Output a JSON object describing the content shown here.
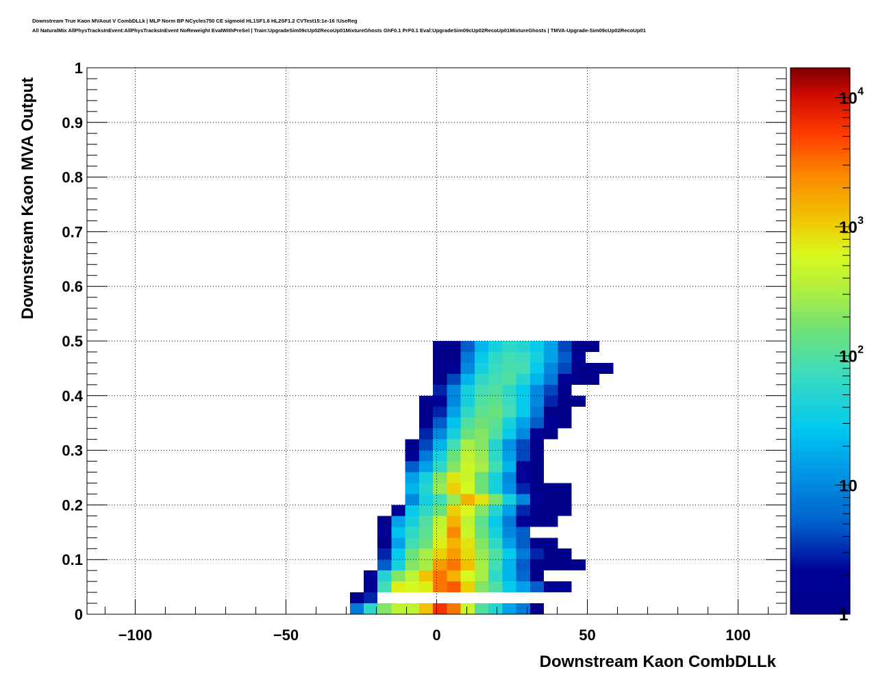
{
  "header": {
    "title_line1": "Downstream True Kaon MVAout V CombDLLk | MLP Norm BP NCycles750 CE sigmoid HL1SF1.6 HL2SF1.2 CVTest15:1e-16 !UseReg",
    "title_line2": "All NaturalMix AllPhysTracksInEvent:AllPhysTracksInEvent NoReweight EvalWithPreSel | Train:UpgradeSim09cUp02RecoUp01MixtureGhosts GhF0.1 PrF0.1 Eval:UpgradeSim09cUp02RecoUp01MixtureGhosts | TMVA-Upgrade-Sim09cUp02RecoUp01"
  },
  "chart_data": {
    "type": "heatmap",
    "title": "Downstream True Kaon MVAout V CombDLLk | MLP Norm BP NCycles750 CE sigmoid HL1SF1.6 HL2SF1.2 CVTest15:1e-16 !UseReg",
    "xlabel": "Downstream Kaon CombDLLk",
    "ylabel": "Downstream Kaon MVA Output",
    "xlim": [
      -116,
      116
    ],
    "ylim": [
      0,
      1
    ],
    "xticks": [
      "−100",
      "−50",
      "0",
      "50",
      "100"
    ],
    "xtick_values": [
      -100,
      -50,
      0,
      50,
      100
    ],
    "yticks": [
      "0",
      "0.1",
      "0.2",
      "0.3",
      "0.4",
      "0.5",
      "0.6",
      "0.7",
      "0.8",
      "0.9",
      "1"
    ],
    "ytick_values": [
      0,
      0.1,
      0.2,
      0.3,
      0.4,
      0.5,
      0.6,
      0.7,
      0.8,
      0.9,
      1
    ],
    "grid": true,
    "colorbar": {
      "scale": "log",
      "range": [
        1,
        17000
      ],
      "tick_values": [
        1,
        10,
        100,
        1000,
        10000
      ],
      "tick_labels": [
        {
          "base": "1",
          "exp": ""
        },
        {
          "base": "10",
          "exp": ""
        },
        {
          "base": "10",
          "exp": "2"
        },
        {
          "base": "10",
          "exp": "3"
        },
        {
          "base": "10",
          "exp": "4"
        }
      ]
    },
    "x_bin_edges_start": -28.8,
    "x_bin_width": 4.6,
    "y_bin_width": 0.02,
    "row_note": "rows indexed from y=0 upward; each row: [y_bin_index, first_x_bin_index, counts...]",
    "rows": [
      [
        0,
        0,
        8,
        60,
        200,
        400,
        400,
        1200,
        6000,
        3000,
        500,
        100,
        50,
        15,
        8,
        1
      ],
      [
        1,
        0,
        1,
        3
      ],
      [
        2,
        0,
        0,
        2,
        80,
        700,
        600,
        700,
        3000,
        4000,
        1000,
        200,
        100,
        30,
        15,
        5,
        2,
        2
      ],
      [
        3,
        1,
        2,
        50,
        200,
        400,
        1200,
        3000,
        1500,
        600,
        300,
        60,
        20,
        6,
        1
      ],
      [
        4,
        2,
        5,
        40,
        200,
        300,
        2000,
        3000,
        1200,
        300,
        80,
        20,
        5,
        1,
        1,
        1,
        1
      ],
      [
        5,
        2,
        3,
        30,
        150,
        300,
        1000,
        2000,
        900,
        250,
        100,
        30,
        8,
        3,
        1,
        1
      ],
      [
        6,
        2,
        1,
        15,
        80,
        150,
        700,
        1500,
        800,
        200,
        60,
        15,
        5,
        1,
        1
      ],
      [
        7,
        2,
        2,
        25,
        60,
        120,
        500,
        2500,
        500,
        150,
        40,
        10,
        5
      ],
      [
        8,
        2,
        1,
        15,
        40,
        100,
        400,
        1500,
        400,
        120,
        30,
        8,
        2,
        1,
        1
      ],
      [
        9,
        3,
        2,
        30,
        60,
        150,
        1000,
        600,
        200,
        50,
        15,
        3,
        1,
        1,
        1
      ],
      [
        10,
        4,
        10,
        40,
        80,
        250,
        1500,
        800,
        180,
        40,
        10,
        2,
        1,
        1
      ],
      [
        11,
        4,
        20,
        50,
        250,
        1000,
        600,
        160,
        40,
        12,
        3,
        1,
        1,
        1
      ],
      [
        12,
        4,
        15,
        40,
        200,
        800,
        500,
        150,
        40,
        10,
        2,
        1
      ],
      [
        13,
        4,
        5,
        15,
        60,
        200,
        500,
        300,
        80,
        20,
        2,
        1
      ],
      [
        14,
        4,
        2,
        8,
        40,
        150,
        400,
        250,
        60,
        15,
        4,
        1
      ],
      [
        15,
        4,
        1,
        4,
        20,
        80,
        300,
        200,
        50,
        12,
        4,
        1
      ],
      [
        16,
        5,
        3,
        10,
        40,
        150,
        200,
        100,
        30,
        10,
        2,
        1
      ],
      [
        17,
        5,
        1,
        5,
        25,
        100,
        160,
        120,
        40,
        15,
        5,
        2,
        1
      ],
      [
        18,
        5,
        1,
        3,
        15,
        60,
        120,
        150,
        80,
        30,
        8,
        1,
        1
      ],
      [
        19,
        5,
        1,
        2,
        10,
        40,
        100,
        120,
        70,
        30,
        10,
        3,
        1,
        1
      ],
      [
        20,
        6,
        3,
        10,
        40,
        80,
        100,
        60,
        30,
        10,
        4,
        1
      ],
      [
        21,
        6,
        1,
        4,
        20,
        60,
        80,
        100,
        50,
        20,
        8,
        2,
        1,
        1
      ],
      [
        22,
        6,
        1,
        2,
        10,
        40,
        70,
        90,
        80,
        30,
        10,
        4,
        1,
        1,
        1
      ],
      [
        23,
        6,
        1,
        1,
        8,
        30,
        60,
        80,
        70,
        40,
        15,
        5,
        2
      ],
      [
        24,
        6,
        1,
        1,
        5,
        20,
        40,
        60,
        50,
        30,
        15,
        4,
        1,
        1
      ]
    ]
  }
}
